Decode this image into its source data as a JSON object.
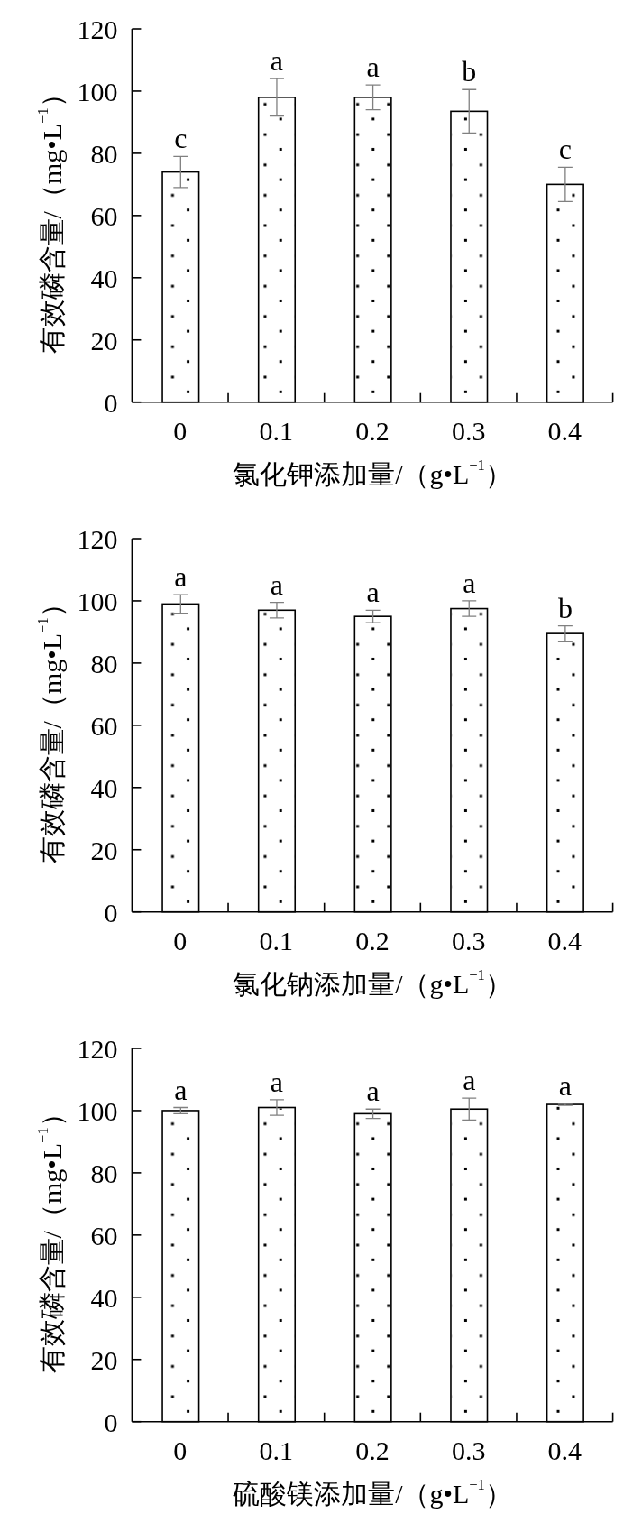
{
  "chart_data": [
    {
      "type": "bar",
      "categories": [
        "0",
        "0.1",
        "0.2",
        "0.3",
        "0.4"
      ],
      "values": [
        74,
        98,
        98,
        93.5,
        70
      ],
      "errors": [
        5,
        6,
        4,
        7,
        5.5
      ],
      "color": "#ffffff",
      "xlabel": "氯化钾添加量/（g•L$^{−1}$）",
      "ylabel": "有效磷含量/（mg•L$^{−1}$）",
      "ylim": [
        0,
        120
      ],
      "yticks": [
        0,
        20,
        40,
        60,
        80,
        100,
        120
      ],
      "annotations": [
        {
          "text": "c",
          "x": "0",
          "y": 79
        },
        {
          "text": "a",
          "x": "0.1",
          "y": 104
        },
        {
          "text": "a",
          "x": "0.2",
          "y": 102
        },
        {
          "text": "b",
          "x": "0.3",
          "y": 100.5
        },
        {
          "text": "c",
          "x": "0.4",
          "y": 75.5
        }
      ]
    },
    {
      "type": "bar",
      "categories": [
        "0",
        "0.1",
        "0.2",
        "0.3",
        "0.4"
      ],
      "values": [
        99,
        97,
        95,
        97.5,
        89.5
      ],
      "errors": [
        3,
        2.5,
        2,
        2.5,
        2.5
      ],
      "color": "#ffffff",
      "xlabel": "氯化钠添加量/（g•L$^{−1}$）",
      "ylabel": "有效磷含量/（mg•L$^{−1}$）",
      "ylim": [
        0,
        120
      ],
      "yticks": [
        0,
        20,
        40,
        60,
        80,
        100,
        120
      ],
      "annotations": [
        {
          "text": "a",
          "x": "0",
          "y": 102
        },
        {
          "text": "a",
          "x": "0.1",
          "y": 99.5
        },
        {
          "text": "a",
          "x": "0.2",
          "y": 97
        },
        {
          "text": "a",
          "x": "0.3",
          "y": 100
        },
        {
          "text": "b",
          "x": "0.4",
          "y": 92
        }
      ]
    },
    {
      "type": "bar",
      "categories": [
        "0",
        "0.1",
        "0.2",
        "0.3",
        "0.4"
      ],
      "values": [
        100,
        101,
        99,
        100.5,
        102
      ],
      "errors": [
        1,
        2.5,
        1.5,
        3.5,
        0.3
      ],
      "color": "#ffffff",
      "xlabel": "硫酸镁添加量/（g•L$^{−1}$）",
      "ylabel": "有效磷含量/（mg•L$^{−1}$）",
      "ylim": [
        0,
        120
      ],
      "yticks": [
        0,
        20,
        40,
        60,
        80,
        100,
        120
      ],
      "annotations": [
        {
          "text": "a",
          "x": "0",
          "y": 101
        },
        {
          "text": "a",
          "x": "0.1",
          "y": 103.5
        },
        {
          "text": "a",
          "x": "0.2",
          "y": 100.5
        },
        {
          "text": "a",
          "x": "0.3",
          "y": 104
        },
        {
          "text": "a",
          "x": "0.4",
          "y": 102.3
        }
      ]
    }
  ]
}
